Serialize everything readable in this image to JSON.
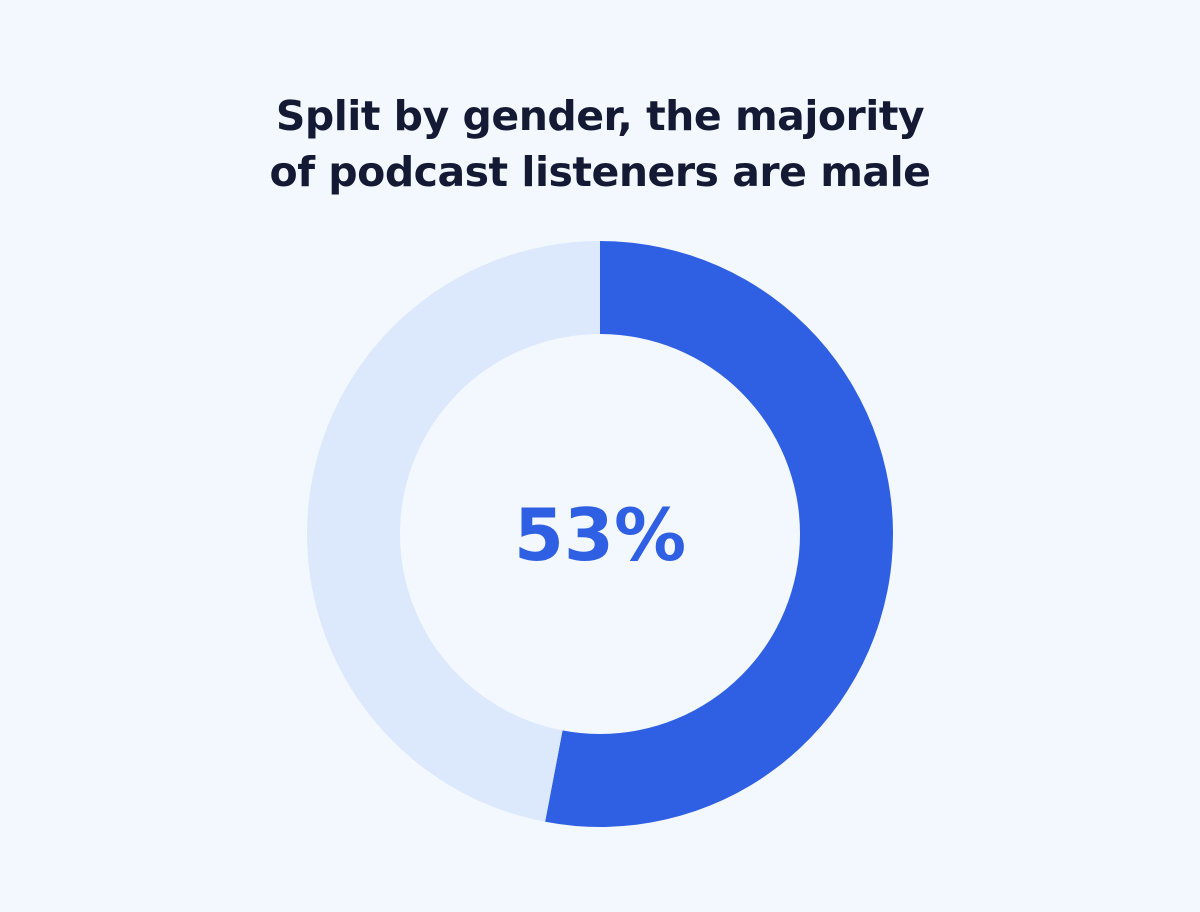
{
  "chart_data": {
    "type": "pie",
    "title_lines": [
      "Split by gender, the majority",
      "of podcast listeners are male"
    ],
    "slices": [
      {
        "value": 53,
        "color": "#2f5fe3"
      },
      {
        "value": 47,
        "color": "#dce8fb"
      }
    ],
    "center_label": "53%",
    "center_label_color": "#2f5fe3",
    "inner_hole_color": "#f3f8fe"
  }
}
